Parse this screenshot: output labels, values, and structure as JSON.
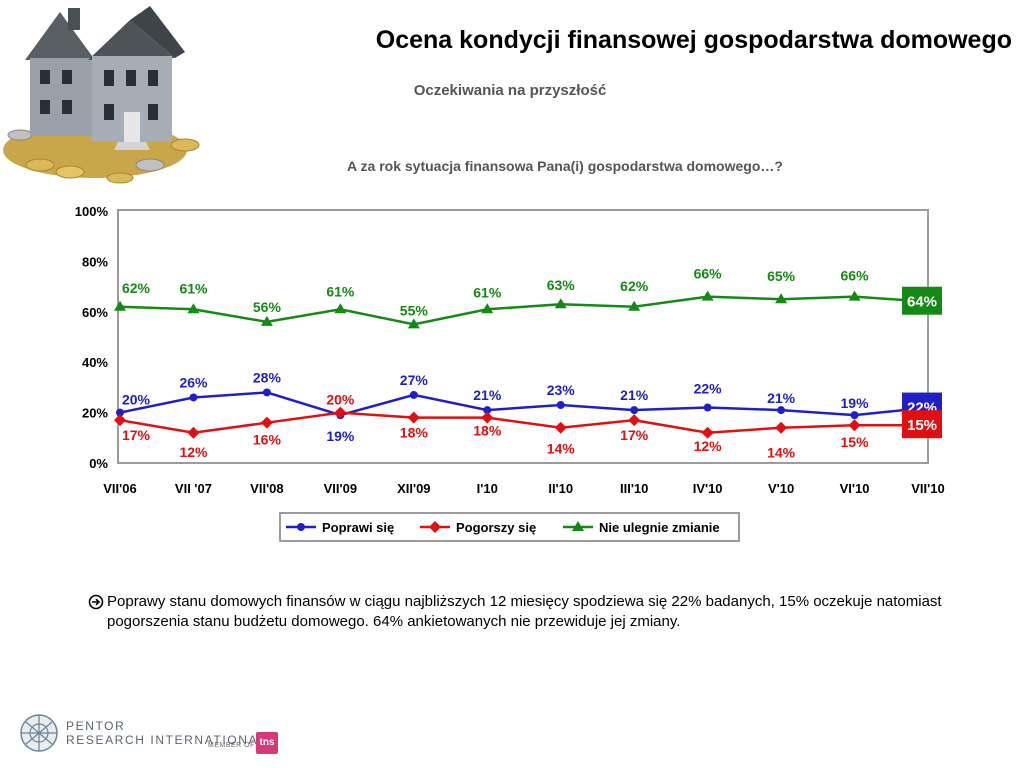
{
  "title": "Ocena kondycji finansowej gospodarstwa domowego",
  "subtitle": "Oczekiwania na przyszłość",
  "question": "A za rok sytuacja finansowa Pana(i) gospodarstwa domowego…?",
  "summary_text": "Poprawy stanu domowych finansów w ciągu najbliższych 12 miesięcy spodziewa się 22% badanych, 15%  oczekuje natomiast pogorszenia  stanu budżetu domowego. 64% ankietowanych nie przewiduje jej zmiany.",
  "footer": {
    "line1": "PENTOR",
    "line2": "RESEARCH INTERNATIONAL",
    "member": "MEMBER OF",
    "tns": "tns"
  },
  "icons": {
    "bullet": "arrow-circle-right-icon",
    "logo": "globe-logo-icon",
    "picture": "house-on-coins-image"
  },
  "chart_data": {
    "type": "line",
    "categories": [
      "VII'06",
      "VII '07",
      "VII'08",
      "VII'09",
      "XII'09",
      "I'10",
      "II'10",
      "III'10",
      "IV'10",
      "V'10",
      "VI'10",
      "VII'10"
    ],
    "ylim": [
      0,
      100
    ],
    "yticks": [
      0,
      20,
      40,
      60,
      80,
      100
    ],
    "ytick_labels": [
      "0%",
      "20%",
      "40%",
      "60%",
      "80%",
      "100%"
    ],
    "grid": false,
    "legend_position": "bottom",
    "series": [
      {
        "name": "Poprawi się",
        "color": "#1f1fc8",
        "marker": "circle",
        "values": [
          20,
          26,
          28,
          19,
          27,
          21,
          23,
          21,
          22,
          21,
          19,
          22
        ],
        "labels": [
          "20%",
          "26%",
          "28%",
          "19%",
          "27%",
          "21%",
          "23%",
          "21%",
          "22%",
          "21%",
          "19%",
          "22%"
        ]
      },
      {
        "name": "Pogorszy się",
        "color": "#e01010",
        "marker": "diamond",
        "values": [
          17,
          12,
          16,
          20,
          18,
          18,
          14,
          17,
          12,
          14,
          15,
          15
        ],
        "labels": [
          "17%",
          "12%",
          "16%",
          "20%",
          "18%",
          "18%",
          "14%",
          "17%",
          "12%",
          "14%",
          "15%",
          "15%"
        ]
      },
      {
        "name": "Nie ulegnie zmianie",
        "color": "#148a14",
        "marker": "triangle",
        "values": [
          62,
          61,
          56,
          61,
          55,
          61,
          63,
          62,
          66,
          65,
          66,
          64
        ],
        "labels": [
          "62%",
          "61%",
          "56%",
          "61%",
          "55%",
          "61%",
          "63%",
          "62%",
          "66%",
          "65%",
          "66%",
          "64%"
        ]
      }
    ]
  }
}
